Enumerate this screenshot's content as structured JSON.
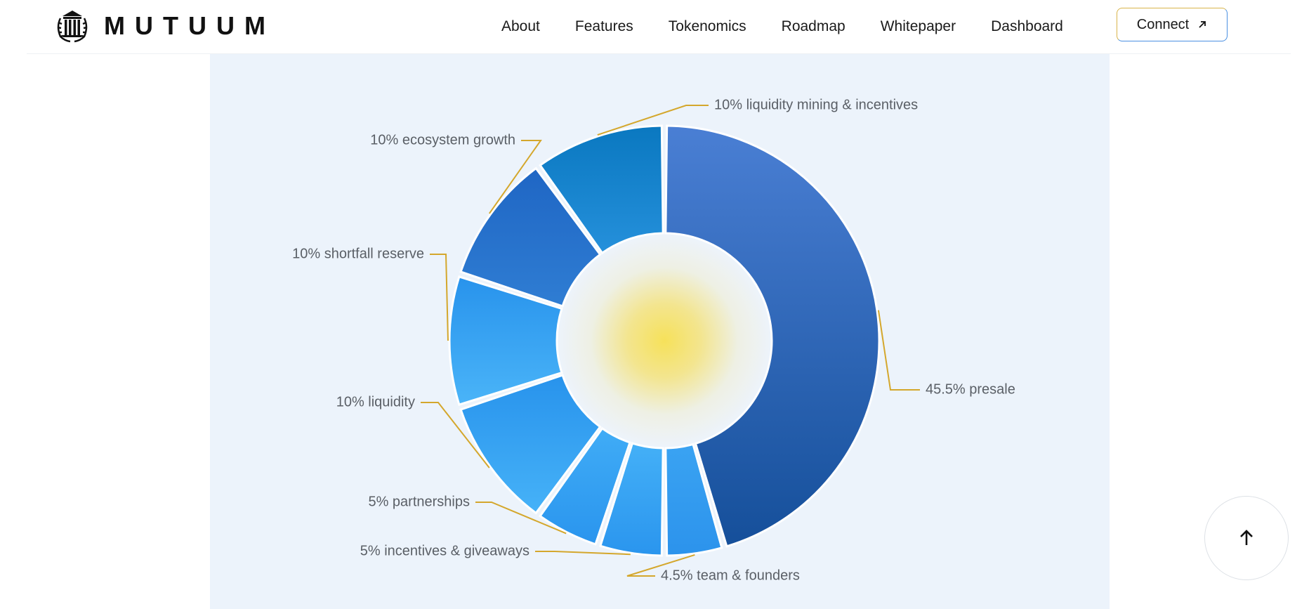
{
  "header": {
    "logo_text": "MUTUUM",
    "nav": [
      "About",
      "Features",
      "Tokenomics",
      "Roadmap",
      "Whitepaper",
      "Dashboard"
    ],
    "connect_label": "Connect"
  },
  "icons": {
    "logo": "mutuum-column-laurel-icon",
    "connect": "arrow-up-right-icon",
    "back_to_top": "arrow-up-icon"
  },
  "colors": {
    "accent_gold": "#d4a72c",
    "label_text": "#5a5f66",
    "panel_bg": "#ecf3fb",
    "center_glow": "#f6e15a"
  },
  "chart_data": {
    "type": "pie",
    "variant": "donut",
    "categories": [
      "presale",
      "team & founders",
      "incentives & giveaways",
      "partnerships",
      "liquidity",
      "shortfall reserve",
      "ecosystem growth",
      "liquidity mining & incentives"
    ],
    "values": [
      45.5,
      4.5,
      5,
      5,
      10,
      10,
      10,
      10
    ],
    "labels": [
      "45.5% presale",
      "4.5% team & founders",
      "5% incentives & giveaways",
      "5% partnerships",
      "10% liquidity",
      "10% shortfall reserve",
      "10% ecosystem growth",
      "10% liquidity mining & incentives"
    ],
    "colors": [
      [
        "#4a7fd4",
        "#154f9a"
      ],
      [
        "#3aa3f2",
        "#2c93ec"
      ],
      [
        "#44b0f7",
        "#2a95ee"
      ],
      [
        "#40acf6",
        "#2a95ee"
      ],
      [
        "#2893ec",
        "#46b2f8"
      ],
      [
        "#2893ec",
        "#4ab4f8"
      ],
      [
        "#1f66c4",
        "#2f7dd3"
      ],
      [
        "#0a78c0",
        "#2590db"
      ]
    ],
    "title": "",
    "legend": "none"
  }
}
